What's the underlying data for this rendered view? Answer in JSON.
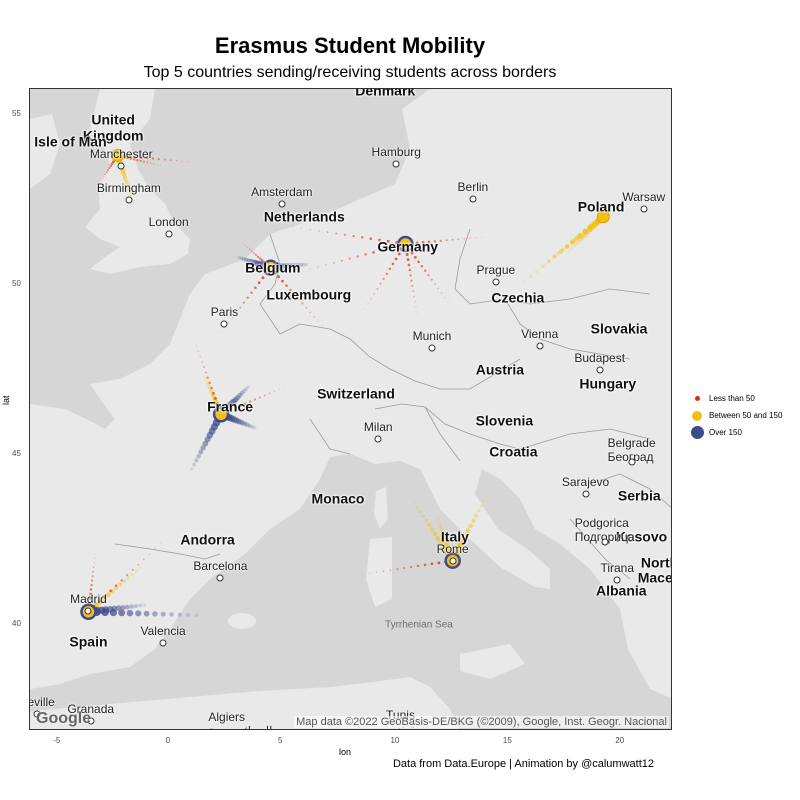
{
  "title": "Erasmus Student Mobility",
  "subtitle": "Top 5 countries sending/receiving students across borders",
  "caption": "Data from Data.Europe | Animation by @calumwatt12",
  "map": {
    "attribution": "Map data ©2022 GeoBasis-DE/BKG (©2009), Google, Inst. Geogr. Nacional",
    "logo_text": "Google",
    "countries": [
      {
        "name": "United\nKingdom",
        "lon": -2.6,
        "lat": 54.6
      },
      {
        "name": "Isle of Man",
        "lon": -4.5,
        "lat": 54.2
      },
      {
        "name": "Denmark",
        "lon": 9.5,
        "lat": 55.7
      },
      {
        "name": "Netherlands",
        "lon": 5.9,
        "lat": 52.0
      },
      {
        "name": "Belgium",
        "lon": 4.5,
        "lat": 50.5
      },
      {
        "name": "Luxembourg",
        "lon": 6.1,
        "lat": 49.7
      },
      {
        "name": "Germany",
        "lon": 10.5,
        "lat": 51.1
      },
      {
        "name": "Poland",
        "lon": 19.1,
        "lat": 52.3
      },
      {
        "name": "Czechia",
        "lon": 15.4,
        "lat": 49.6
      },
      {
        "name": "Slovakia",
        "lon": 19.9,
        "lat": 48.7
      },
      {
        "name": "Austria",
        "lon": 14.6,
        "lat": 47.5
      },
      {
        "name": "Hungary",
        "lon": 19.4,
        "lat": 47.1
      },
      {
        "name": "Switzerland",
        "lon": 8.2,
        "lat": 46.8
      },
      {
        "name": "France",
        "lon": 2.6,
        "lat": 46.4
      },
      {
        "name": "Slovenia",
        "lon": 14.8,
        "lat": 46.0
      },
      {
        "name": "Croatia",
        "lon": 15.2,
        "lat": 45.1
      },
      {
        "name": "Serbia",
        "lon": 20.8,
        "lat": 43.8
      },
      {
        "name": "Monaco",
        "lon": 7.4,
        "lat": 43.7
      },
      {
        "name": "Italy",
        "lon": 12.6,
        "lat": 42.6
      },
      {
        "name": "Kosovo",
        "lon": 20.9,
        "lat": 42.6
      },
      {
        "name": "North\nMaced",
        "lon": 21.7,
        "lat": 41.6
      },
      {
        "name": "Andorra",
        "lon": 1.6,
        "lat": 42.5
      },
      {
        "name": "Albania",
        "lon": 20.0,
        "lat": 41.0
      },
      {
        "name": "Spain",
        "lon": -3.7,
        "lat": 39.5
      }
    ],
    "cities": [
      {
        "name": "Manchester",
        "lon": -2.24,
        "lat": 53.48
      },
      {
        "name": "Birmingham",
        "lon": -1.9,
        "lat": 52.48
      },
      {
        "name": "London",
        "lon": -0.13,
        "lat": 51.5
      },
      {
        "name": "Hamburg",
        "lon": 9.99,
        "lat": 53.55
      },
      {
        "name": "Berlin",
        "lon": 13.4,
        "lat": 52.52
      },
      {
        "name": "Warsaw",
        "lon": 21.0,
        "lat": 52.23
      },
      {
        "name": "Amsterdam",
        "lon": 4.9,
        "lat": 52.37
      },
      {
        "name": "Prague",
        "lon": 14.42,
        "lat": 50.08
      },
      {
        "name": "Paris",
        "lon": 2.35,
        "lat": 48.86
      },
      {
        "name": "Munich",
        "lon": 11.58,
        "lat": 48.14
      },
      {
        "name": "Vienna",
        "lon": 16.37,
        "lat": 48.21
      },
      {
        "name": "Budapest",
        "lon": 19.04,
        "lat": 47.5
      },
      {
        "name": "Milan",
        "lon": 9.19,
        "lat": 45.46
      },
      {
        "name": "Belgrade\nБеоград",
        "lon": 20.46,
        "lat": 44.79
      },
      {
        "name": "Sarajevo",
        "lon": 18.41,
        "lat": 43.86
      },
      {
        "name": "Podgorica\nПодгорица",
        "lon": 19.26,
        "lat": 42.44
      },
      {
        "name": "Rome",
        "lon": 12.5,
        "lat": 41.9
      },
      {
        "name": "Tirana",
        "lon": 19.82,
        "lat": 41.33
      },
      {
        "name": "Barcelona",
        "lon": 2.17,
        "lat": 41.39
      },
      {
        "name": "Madrid",
        "lon": -3.7,
        "lat": 40.42
      },
      {
        "name": "Valencia",
        "lon": -0.38,
        "lat": 39.47
      },
      {
        "name": "Granada",
        "lon": -3.6,
        "lat": 37.18
      },
      {
        "name": "Seville",
        "lon": -5.98,
        "lat": 37.39
      },
      {
        "name": "Algiers\nالجزائر مدينة",
        "lon": 3.06,
        "lat": 36.75
      },
      {
        "name": "Tunis\nتونس",
        "lon": 10.18,
        "lat": 36.8
      }
    ],
    "seas": [
      {
        "name": "Tyrrhenian Sea",
        "lon": 11.0,
        "lat": 40.0
      }
    ]
  },
  "axes": {
    "xlabel": "lon",
    "ylabel": "lat",
    "xlim": [
      -6.3,
      22.3
    ],
    "ylim": [
      36.9,
      55.75
    ],
    "xticks": [
      -5,
      0,
      5,
      10,
      15,
      20
    ],
    "yticks": [
      40,
      45,
      50,
      55
    ]
  },
  "legend": {
    "items": [
      {
        "label": "Less than 50",
        "color": "#cc3311",
        "size": "small"
      },
      {
        "label": "Between 50 and 150",
        "color": "#f2c012",
        "size": "medium"
      },
      {
        "label": "Over 150",
        "color": "#3f4a8a",
        "size": "large"
      }
    ]
  },
  "chart_data": {
    "type": "scatter",
    "hubs": [
      {
        "country": "United Kingdom",
        "lon": -2.4,
        "lat": 53.8,
        "category": "Between 50 and 150"
      },
      {
        "country": "Belgium",
        "lon": 4.4,
        "lat": 50.5,
        "category": "Over 150"
      },
      {
        "country": "Germany",
        "lon": 10.4,
        "lat": 51.2,
        "category": "Over 150"
      },
      {
        "country": "Poland",
        "lon": 19.2,
        "lat": 52.0,
        "category": "Between 50 and 150"
      },
      {
        "country": "France",
        "lon": 2.2,
        "lat": 46.2,
        "category": "Over 150"
      },
      {
        "country": "Italy",
        "lon": 12.5,
        "lat": 41.9,
        "category": "Over 150"
      },
      {
        "country": "Spain",
        "lon": -3.7,
        "lat": 40.4,
        "category": "Over 150"
      }
    ],
    "flows": [
      {
        "from": "United Kingdom",
        "to_lon": -0.5,
        "to_lat": 53.5,
        "category": "Less than 50"
      },
      {
        "from": "United Kingdom",
        "to_lon": 1.0,
        "to_lat": 53.6,
        "category": "Less than 50"
      },
      {
        "from": "United Kingdom",
        "to_lon": -1.8,
        "to_lat": 52.6,
        "category": "Between 50 and 150"
      },
      {
        "from": "United Kingdom",
        "to_lon": -3.2,
        "to_lat": 53.0,
        "category": "Less than 50"
      },
      {
        "from": "Belgium",
        "to_lon": 3.2,
        "to_lat": 51.2,
        "category": "Less than 50"
      },
      {
        "from": "Belgium",
        "to_lon": 2.2,
        "to_lat": 48.6,
        "category": "Less than 50"
      },
      {
        "from": "Belgium",
        "to_lon": 6.0,
        "to_lat": 50.6,
        "category": "Over 150"
      },
      {
        "from": "Belgium",
        "to_lon": 3.0,
        "to_lat": 50.8,
        "category": "Over 150"
      },
      {
        "from": "Belgium",
        "to_lon": 6.7,
        "to_lat": 48.8,
        "category": "Less than 50"
      },
      {
        "from": "Germany",
        "to_lon": 5.4,
        "to_lat": 51.7,
        "category": "Less than 50"
      },
      {
        "from": "Germany",
        "to_lon": 5.8,
        "to_lat": 50.4,
        "category": "Less than 50"
      },
      {
        "from": "Germany",
        "to_lon": 8.6,
        "to_lat": 49.3,
        "category": "Less than 50"
      },
      {
        "from": "Germany",
        "to_lon": 10.9,
        "to_lat": 49.2,
        "category": "Less than 50"
      },
      {
        "from": "Germany",
        "to_lon": 12.3,
        "to_lat": 49.5,
        "category": "Less than 50"
      },
      {
        "from": "Germany",
        "to_lon": 13.8,
        "to_lat": 51.4,
        "category": "Less than 50"
      },
      {
        "from": "Poland",
        "to_lon": 15.7,
        "to_lat": 50.1,
        "category": "Between 50 and 150"
      },
      {
        "from": "Poland",
        "to_lon": 16.6,
        "to_lat": 50.6,
        "category": "Between 50 and 150"
      },
      {
        "from": "Poland",
        "to_lon": 17.7,
        "to_lat": 51.0,
        "category": "Between 50 and 150"
      },
      {
        "from": "France",
        "to_lon": 0.9,
        "to_lat": 44.6,
        "category": "Over 150"
      },
      {
        "from": "France",
        "to_lon": 3.4,
        "to_lat": 47.0,
        "category": "Over 150"
      },
      {
        "from": "France",
        "to_lon": 3.7,
        "to_lat": 45.8,
        "category": "Over 150"
      },
      {
        "from": "France",
        "to_lon": 1.5,
        "to_lat": 47.3,
        "category": "Between 50 and 150"
      },
      {
        "from": "France",
        "to_lon": 5.0,
        "to_lat": 47.0,
        "category": "Less than 50"
      },
      {
        "from": "France",
        "to_lon": 1.1,
        "to_lat": 48.2,
        "category": "Less than 50"
      },
      {
        "from": "Italy",
        "to_lon": 10.8,
        "to_lat": 43.6,
        "category": "Between 50 and 150"
      },
      {
        "from": "Italy",
        "to_lon": 11.8,
        "to_lat": 43.2,
        "category": "Between 50 and 150"
      },
      {
        "from": "Italy",
        "to_lon": 13.2,
        "to_lat": 42.9,
        "category": "Between 50 and 150"
      },
      {
        "from": "Italy",
        "to_lon": 14.0,
        "to_lat": 43.8,
        "category": "Between 50 and 150"
      },
      {
        "from": "Italy",
        "to_lon": 8.5,
        "to_lat": 41.5,
        "category": "Less than 50"
      },
      {
        "from": "Spain",
        "to_lon": -3.4,
        "to_lat": 42.1,
        "category": "Less than 50"
      },
      {
        "from": "Spain",
        "to_lon": -1.4,
        "to_lat": 41.7,
        "category": "Between 50 and 150"
      },
      {
        "from": "Spain",
        "to_lon": -1.2,
        "to_lat": 40.6,
        "category": "Over 150"
      },
      {
        "from": "Spain",
        "to_lon": 1.1,
        "to_lat": 40.3,
        "category": "Over 150"
      },
      {
        "from": "Spain",
        "to_lon": -0.5,
        "to_lat": 42.4,
        "category": "Less than 50"
      }
    ]
  }
}
